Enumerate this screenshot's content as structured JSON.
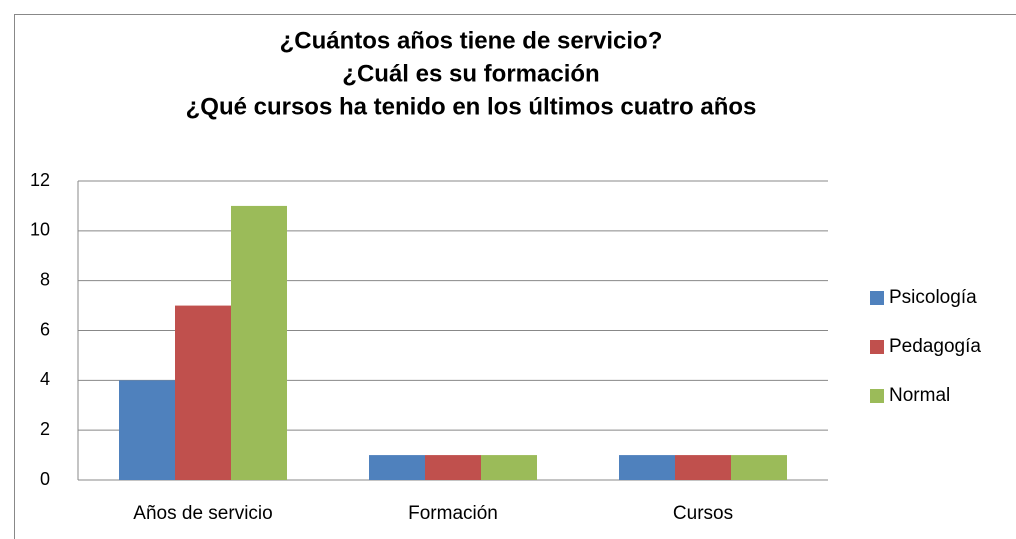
{
  "chart_data": {
    "type": "bar",
    "title": [
      "¿Cuántos años tiene de servicio?",
      "¿Cuál es su formación",
      "¿Qué cursos ha tenido en los últimos cuatro años"
    ],
    "categories": [
      "Años de servicio",
      "Formación",
      "Cursos"
    ],
    "series": [
      {
        "name": "Psicología",
        "color": "#4f81bd",
        "values": [
          4,
          1,
          1
        ]
      },
      {
        "name": "Pedagogía",
        "color": "#c0504d",
        "values": [
          7,
          1,
          1
        ]
      },
      {
        "name": "Normal",
        "color": "#9bbb59",
        "values": [
          11,
          1,
          1
        ]
      }
    ],
    "ylim": [
      0,
      12
    ],
    "yticks": [
      0,
      2,
      4,
      6,
      8,
      10,
      12
    ],
    "grid": true,
    "legend": "right"
  }
}
